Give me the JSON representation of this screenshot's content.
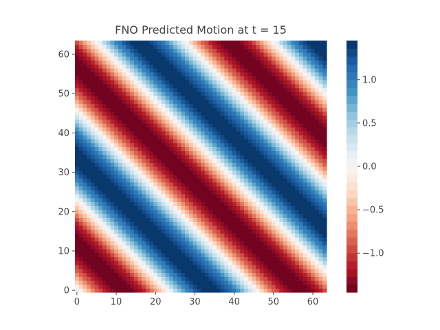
{
  "chart_data": {
    "type": "heatmap",
    "title": "FNO Predicted Motion at t = 15",
    "grid_size": [
      64,
      64
    ],
    "x_ticks": [
      0,
      10,
      20,
      30,
      40,
      50,
      60
    ],
    "y_ticks": [
      0,
      10,
      20,
      30,
      40,
      50,
      60
    ],
    "xlim": [
      0,
      64
    ],
    "ylim": [
      0,
      64
    ],
    "colorbar": {
      "colormap": "RdBu",
      "levels": 32,
      "vmin": -1.45,
      "vmax": 1.45,
      "ticks": [
        -1.0,
        -0.5,
        0.0,
        0.5,
        1.0
      ],
      "tick_labels": [
        "−1.0",
        "−0.5",
        "0.0",
        "0.5",
        "1.0"
      ]
    },
    "field": {
      "description": "plane wave value = A*sin(2*pi*(x + y)/period + phase)",
      "amplitude": 1.45,
      "period": 45,
      "phase_deg": -185
    },
    "grid": false,
    "legend": "right"
  }
}
